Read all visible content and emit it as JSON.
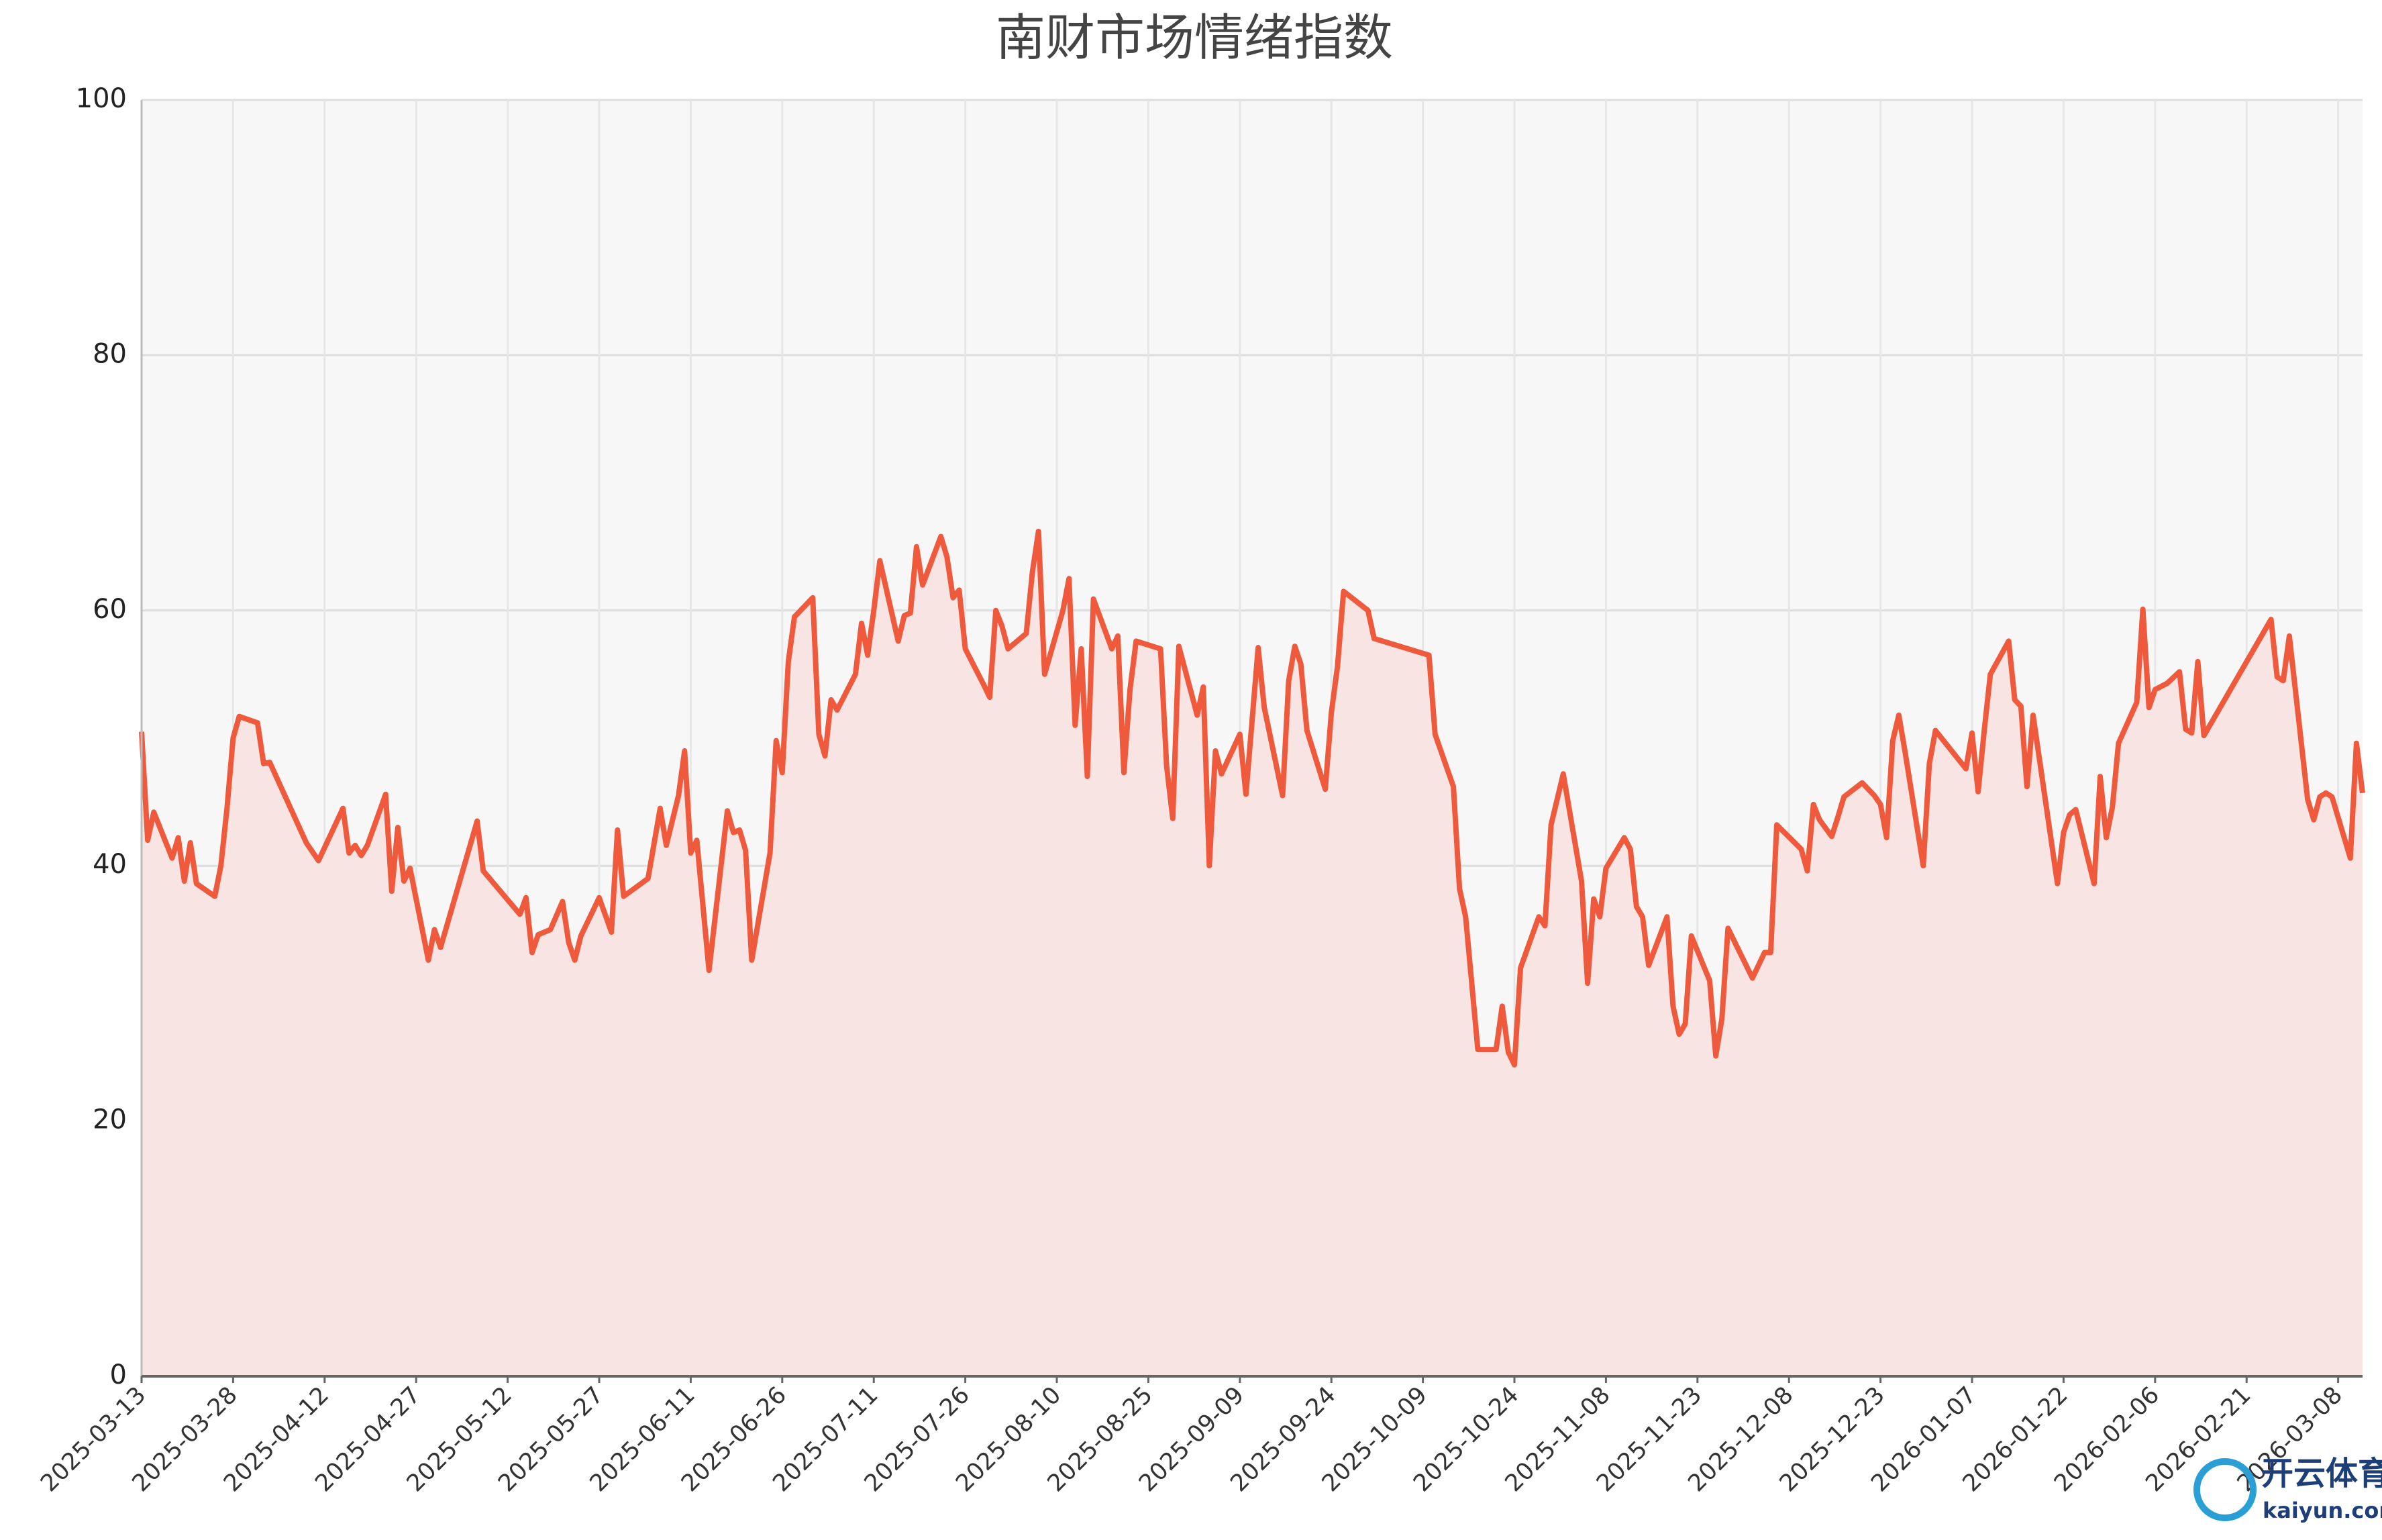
{
  "chart_data": {
    "type": "line",
    "title": "南财市场情绪指数",
    "x": [
      "2025-03-13",
      "2025-03-14",
      "2025-03-15",
      "2025-03-18",
      "2025-03-19",
      "2025-03-20",
      "2025-03-21",
      "2025-03-22",
      "2025-03-25",
      "2025-03-26",
      "2025-03-27",
      "2025-03-28",
      "2025-03-29",
      "2025-04-01",
      "2025-04-02",
      "2025-04-03",
      "2025-04-09",
      "2025-04-11",
      "2025-04-15",
      "2025-04-16",
      "2025-04-17",
      "2025-04-18",
      "2025-04-19",
      "2025-04-22",
      "2025-04-23",
      "2025-04-24",
      "2025-04-25",
      "2025-04-26",
      "2025-04-29",
      "2025-04-30",
      "2025-05-01",
      "2025-05-07",
      "2025-05-08",
      "2025-05-14",
      "2025-05-15",
      "2025-05-16",
      "2025-05-17",
      "2025-05-19",
      "2025-05-21",
      "2025-05-22",
      "2025-05-23",
      "2025-05-24",
      "2025-05-27",
      "2025-05-29",
      "2025-05-30",
      "2025-05-31",
      "2025-06-04",
      "2025-06-06",
      "2025-06-07",
      "2025-06-09",
      "2025-06-10",
      "2025-06-11",
      "2025-06-12",
      "2025-06-14",
      "2025-06-17",
      "2025-06-18",
      "2025-06-19",
      "2025-06-20",
      "2025-06-21",
      "2025-06-24",
      "2025-06-25",
      "2025-06-26",
      "2025-06-27",
      "2025-06-28",
      "2025-07-01",
      "2025-07-02",
      "2025-07-03",
      "2025-07-04",
      "2025-07-05",
      "2025-07-08",
      "2025-07-09",
      "2025-07-10",
      "2025-07-11",
      "2025-07-12",
      "2025-07-15",
      "2025-07-16",
      "2025-07-17",
      "2025-07-18",
      "2025-07-19",
      "2025-07-22",
      "2025-07-23",
      "2025-07-24",
      "2025-07-25",
      "2025-07-26",
      "2025-07-29",
      "2025-07-30",
      "2025-07-31",
      "2025-08-01",
      "2025-08-02",
      "2025-08-05",
      "2025-08-06",
      "2025-08-07",
      "2025-08-08",
      "2025-08-11",
      "2025-08-12",
      "2025-08-13",
      "2025-08-14",
      "2025-08-15",
      "2025-08-16",
      "2025-08-19",
      "2025-08-20",
      "2025-08-21",
      "2025-08-22",
      "2025-08-23",
      "2025-08-27",
      "2025-08-28",
      "2025-08-29",
      "2025-08-30",
      "2025-09-02",
      "2025-09-03",
      "2025-09-04",
      "2025-09-05",
      "2025-09-06",
      "2025-09-09",
      "2025-09-10",
      "2025-09-12",
      "2025-09-13",
      "2025-09-16",
      "2025-09-17",
      "2025-09-18",
      "2025-09-19",
      "2025-09-20",
      "2025-09-23",
      "2025-09-24",
      "2025-09-25",
      "2025-09-26",
      "2025-09-30",
      "2025-10-01",
      "2025-10-10",
      "2025-10-11",
      "2025-10-14",
      "2025-10-15",
      "2025-10-16",
      "2025-10-18",
      "2025-10-21",
      "2025-10-22",
      "2025-10-23",
      "2025-10-24",
      "2025-10-25",
      "2025-10-28",
      "2025-10-29",
      "2025-10-30",
      "2025-11-01",
      "2025-11-04",
      "2025-11-05",
      "2025-11-06",
      "2025-11-07",
      "2025-11-08",
      "2025-11-11",
      "2025-11-12",
      "2025-11-13",
      "2025-11-14",
      "2025-11-15",
      "2025-11-18",
      "2025-11-19",
      "2025-11-20",
      "2025-11-21",
      "2025-11-22",
      "2025-11-25",
      "2025-11-26",
      "2025-11-27",
      "2025-11-28",
      "2025-12-02",
      "2025-12-04",
      "2025-12-05",
      "2025-12-06",
      "2025-12-10",
      "2025-12-11",
      "2025-12-12",
      "2025-12-13",
      "2025-12-15",
      "2025-12-16",
      "2025-12-17",
      "2025-12-20",
      "2025-12-22",
      "2025-12-23",
      "2025-12-24",
      "2025-12-25",
      "2025-12-26",
      "2025-12-27",
      "2025-12-30",
      "2025-12-31",
      "2026-01-01",
      "2026-01-06",
      "2026-01-07",
      "2026-01-08",
      "2026-01-09",
      "2026-01-10",
      "2026-01-13",
      "2026-01-14",
      "2026-01-15",
      "2026-01-16",
      "2026-01-17",
      "2026-01-21",
      "2026-01-22",
      "2026-01-23",
      "2026-01-24",
      "2026-01-27",
      "2026-01-28",
      "2026-01-29",
      "2026-01-30",
      "2026-01-31",
      "2026-02-03",
      "2026-02-04",
      "2026-02-05",
      "2026-02-06",
      "2026-02-08",
      "2026-02-10",
      "2026-02-11",
      "2026-02-12",
      "2026-02-13",
      "2026-02-14",
      "2026-02-25",
      "2026-02-26",
      "2026-02-27",
      "2026-02-28",
      "2026-03-03",
      "2026-03-04",
      "2026-03-05",
      "2026-03-06",
      "2026-03-07",
      "2026-03-10",
      "2026-03-11",
      "2026-03-12"
    ],
    "series": [
      {
        "name": "南财市场情绪指数",
        "color": "#ef5a3d",
        "fill": "#f8e4e3",
        "values": [
          50.5,
          42,
          44.2,
          40.6,
          42.2,
          38.8,
          41.8,
          38.6,
          37.6,
          40,
          44.5,
          50,
          51.7,
          51.2,
          48,
          48.1,
          41.8,
          40.4,
          44.5,
          41,
          41.6,
          40.8,
          41.6,
          45.6,
          38,
          43,
          38.8,
          39.8,
          32.6,
          35,
          33.6,
          43.5,
          39.6,
          36.2,
          37.5,
          33.2,
          34.6,
          35,
          37.2,
          34,
          32.6,
          34.5,
          37.5,
          34.8,
          42.8,
          37.6,
          39,
          44.5,
          41.6,
          45.5,
          49,
          41,
          42,
          31.8,
          44.3,
          42.6,
          42.8,
          41.2,
          32.6,
          41,
          49.8,
          47.3,
          56,
          59.5,
          61,
          50.3,
          48.6,
          53,
          52.2,
          55,
          59,
          56.5,
          60,
          63.9,
          57.6,
          59.6,
          59.8,
          65,
          62,
          65.8,
          64.2,
          61,
          61.6,
          57,
          54.2,
          53.2,
          60,
          58.8,
          57,
          58.2,
          63,
          66.2,
          55,
          60,
          62.5,
          51,
          57,
          47,
          60.9,
          57,
          58,
          47.3,
          53.8,
          57.6,
          57,
          47.8,
          43.7,
          57.2,
          51.8,
          54,
          40,
          49,
          47.2,
          50.3,
          45.6,
          57.1,
          52.4,
          45.5,
          54.5,
          57.2,
          55.8,
          50.6,
          46,
          52,
          55.6,
          61.5,
          60,
          57.8,
          56.5,
          50.3,
          46.2,
          38.2,
          36,
          25.6,
          25.6,
          29,
          25.4,
          24.4,
          32,
          36,
          35.3,
          43.2,
          47.2,
          38.8,
          30.8,
          37.4,
          36,
          39.8,
          42.2,
          41.3,
          36.8,
          36,
          32.2,
          36,
          29,
          26.8,
          27.6,
          34.5,
          31,
          25.1,
          28,
          35.1,
          31.2,
          33.2,
          33.2,
          43.2,
          41.3,
          39.6,
          44.8,
          43.6,
          42.3,
          43.8,
          45.4,
          46.5,
          45.5,
          44.8,
          42.2,
          49.8,
          51.8,
          49,
          40,
          48,
          50.6,
          47.6,
          50.4,
          45.8,
          50.6,
          55,
          57.6,
          53,
          52.5,
          46.2,
          51.8,
          38.6,
          42.6,
          44,
          44.4,
          38.6,
          47,
          42.2,
          44.6,
          49.6,
          52.8,
          60.1,
          52.4,
          53.8,
          54.3,
          55.2,
          50.7,
          50.4,
          56,
          50.2,
          59.3,
          54.8,
          54.5,
          58,
          45.2,
          43.6,
          45.4,
          45.7,
          45.4,
          40.6,
          49.6,
          45.7
        ]
      }
    ],
    "xlim": [
      "2025-03-13",
      "2026-03-12"
    ],
    "xticks": [
      "2025-03-13",
      "2025-03-28",
      "2025-04-12",
      "2025-04-27",
      "2025-05-12",
      "2025-05-27",
      "2025-06-11",
      "2025-06-26",
      "2025-07-11",
      "2025-07-26",
      "2025-08-10",
      "2025-08-25",
      "2025-09-09",
      "2025-09-24",
      "2025-10-09",
      "2025-10-24",
      "2025-11-08",
      "2025-11-23",
      "2025-12-08",
      "2025-12-23",
      "2026-01-07",
      "2026-01-22",
      "2026-02-06",
      "2026-02-21",
      "2026-03-08"
    ],
    "ylim": [
      0,
      100
    ],
    "yticks": [
      0,
      20,
      40,
      60,
      80,
      100
    ],
    "grid": true,
    "annotations": [
      "开云体育",
      "kaiyun.com"
    ]
  }
}
